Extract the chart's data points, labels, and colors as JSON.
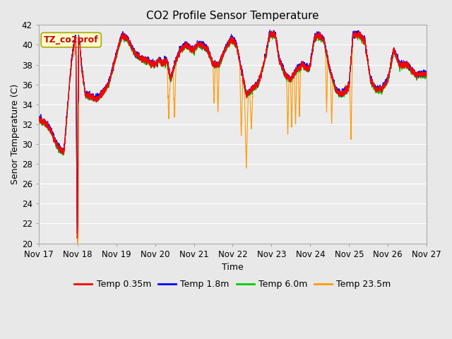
{
  "title": "CO2 Profile Sensor Temperature",
  "xlabel": "Time",
  "ylabel": "Senor Temperature (C)",
  "ylim": [
    20,
    42
  ],
  "yticks": [
    20,
    22,
    24,
    26,
    28,
    30,
    32,
    34,
    36,
    38,
    40,
    42
  ],
  "xtick_days": [
    17,
    18,
    19,
    20,
    21,
    22,
    23,
    24,
    25,
    26,
    27
  ],
  "legend_labels": [
    "Temp 0.35m",
    "Temp 1.8m",
    "Temp 6.0m",
    "Temp 23.5m"
  ],
  "line_colors": [
    "#ff0000",
    "#0000ff",
    "#00cc00",
    "#ff9900"
  ],
  "annotation_text": "TZ_co2prof",
  "annotation_color": "#cc0000",
  "annotation_bg": "#ffffcc",
  "annotation_border": "#aaa800",
  "bg_color": "#e8e8e8",
  "plot_bg": "#ebebeb",
  "grid_color": "#ffffff",
  "linewidth": 0.8
}
